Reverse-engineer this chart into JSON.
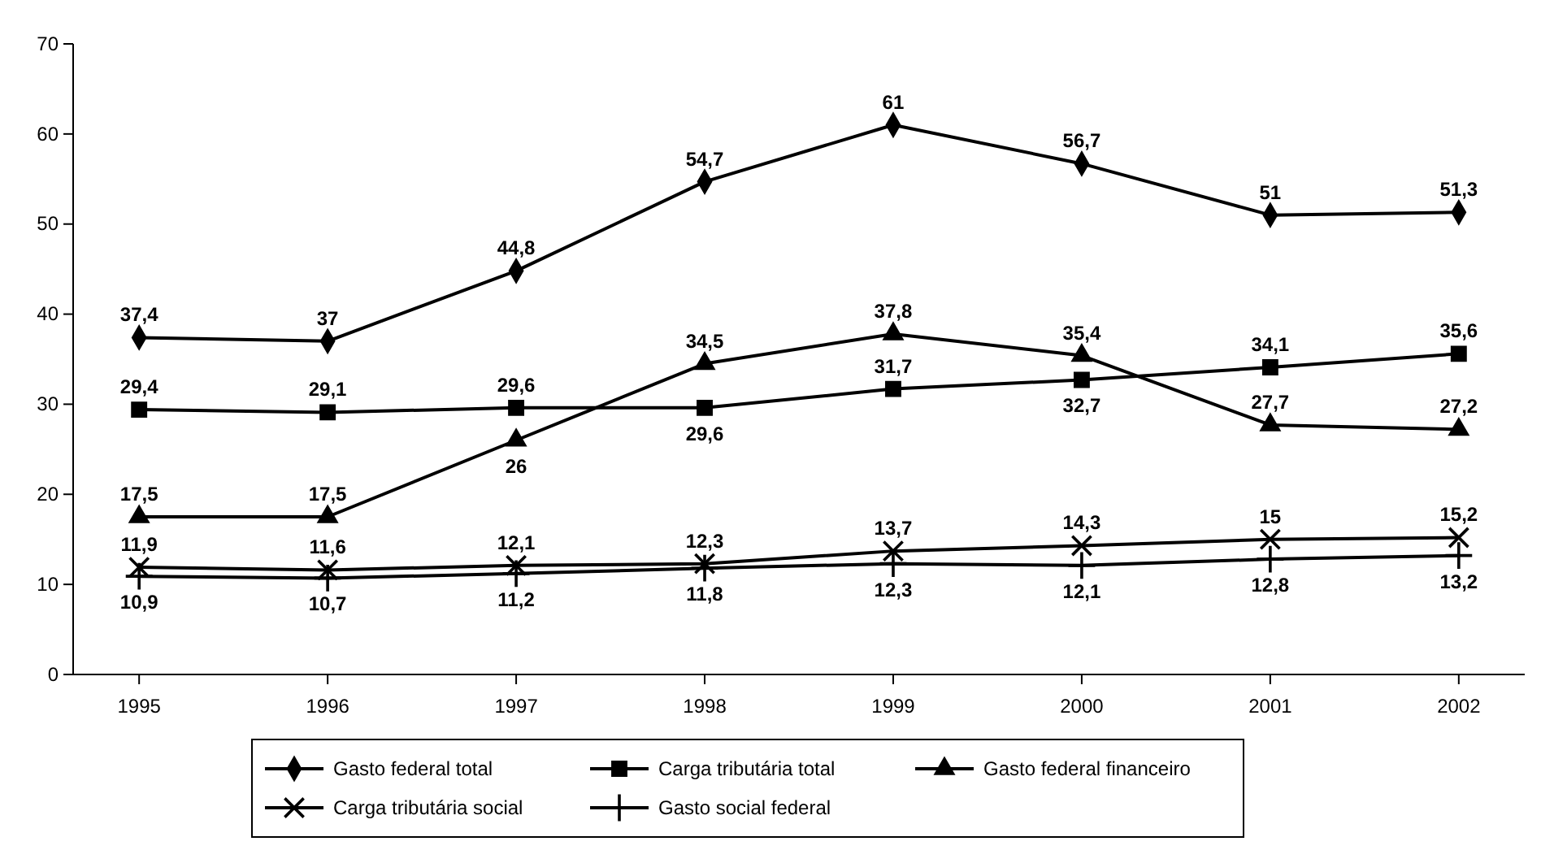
{
  "chart_data": {
    "type": "line",
    "categories": [
      "1995",
      "1996",
      "1997",
      "1998",
      "1999",
      "2000",
      "2001",
      "2002"
    ],
    "ylim": [
      0,
      70
    ],
    "yticks": [
      0,
      10,
      20,
      30,
      40,
      50,
      60,
      70
    ],
    "grid": false,
    "legend": "bottom",
    "series": [
      {
        "name": "Gasto federal total",
        "color": "#000000",
        "marker": "diamond",
        "values": [
          37.4,
          37,
          44.8,
          54.7,
          61,
          56.7,
          51,
          51.3
        ],
        "value_labels": [
          "37,4",
          "37",
          "44,8",
          "54,7",
          "61",
          "56,7",
          "51",
          "51,3"
        ]
      },
      {
        "name": "Carga tributária total",
        "color": "#000000",
        "marker": "square",
        "values": [
          29.4,
          29.1,
          29.6,
          29.6,
          31.7,
          32.7,
          34.1,
          35.6
        ],
        "value_labels": [
          "29,4",
          "29,1",
          "29,6",
          "29,6",
          "31,7",
          "32,7",
          "34,1",
          "35,6"
        ]
      },
      {
        "name": "Gasto federal financeiro",
        "color": "#000000",
        "marker": "triangle",
        "values": [
          17.5,
          17.5,
          26,
          34.5,
          37.8,
          35.4,
          27.7,
          27.2
        ],
        "value_labels": [
          "17,5",
          "17,5",
          "26",
          "34,5",
          "37,8",
          "35,4",
          "27,7",
          "27,2"
        ]
      },
      {
        "name": "Carga tributária social",
        "color": "#000000",
        "marker": "cross",
        "values": [
          11.9,
          11.6,
          12.1,
          12.3,
          13.7,
          14.3,
          15,
          15.2
        ],
        "value_labels": [
          "11,9",
          "11,6",
          "12,1",
          "12,3",
          "13,7",
          "14,3",
          "15",
          "15,2"
        ]
      },
      {
        "name": "Gasto social federal",
        "color": "#000000",
        "marker": "cross",
        "values": [
          10.9,
          10.7,
          11.2,
          11.8,
          12.3,
          12.1,
          12.8,
          13.2
        ],
        "value_labels": [
          "10,9",
          "10,7",
          "11,2",
          "11,8",
          "12,3",
          "12,1",
          "12,8",
          "13,2"
        ]
      }
    ]
  }
}
